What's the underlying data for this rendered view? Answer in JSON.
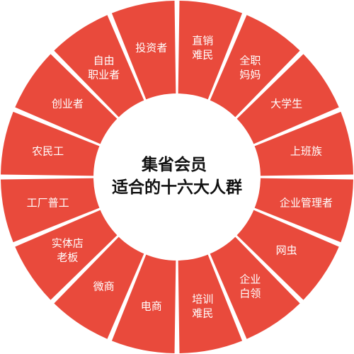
{
  "diagram": {
    "title_line1": "集省会员",
    "title_line2": "适合的十六大人群",
    "colors": {
      "segment_fill": "#E94A3C",
      "separator": "#FFFFFF",
      "center_fill": "#FFFFFF",
      "label_text": "#FFFFFF",
      "title_text": "#111111"
    },
    "segments": [
      {
        "lines": [
          "直销",
          "难民"
        ]
      },
      {
        "lines": [
          "全职",
          "妈妈"
        ]
      },
      {
        "lines": [
          "大学生"
        ]
      },
      {
        "lines": [
          "上班族"
        ]
      },
      {
        "lines": [
          "企业管理者"
        ]
      },
      {
        "lines": [
          "网虫"
        ]
      },
      {
        "lines": [
          "企业",
          "白领"
        ]
      },
      {
        "lines": [
          "培训",
          "难民"
        ]
      },
      {
        "lines": [
          "电商"
        ]
      },
      {
        "lines": [
          "微商"
        ]
      },
      {
        "lines": [
          "实体店",
          "老板"
        ]
      },
      {
        "lines": [
          "工厂普工"
        ]
      },
      {
        "lines": [
          "农民工"
        ]
      },
      {
        "lines": [
          "创业者"
        ]
      },
      {
        "lines": [
          "自由",
          "职业者"
        ]
      },
      {
        "lines": [
          "投资者"
        ]
      }
    ]
  }
}
